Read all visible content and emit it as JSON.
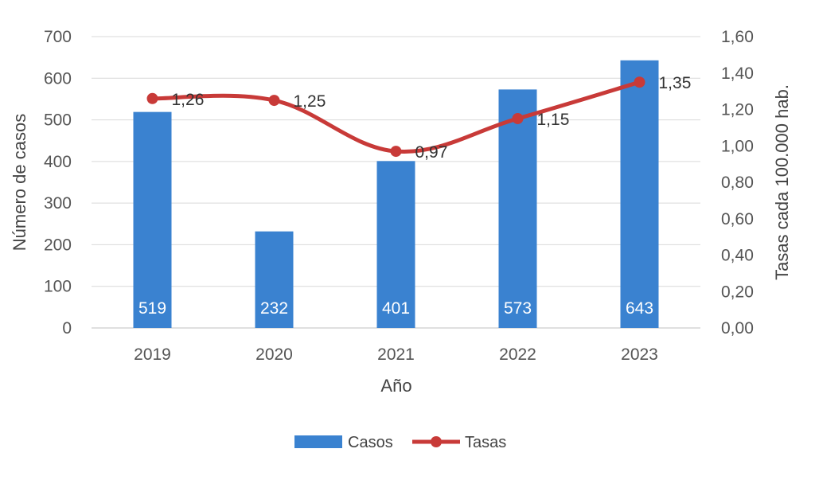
{
  "chart_data": {
    "type": "bar",
    "categories": [
      "2019",
      "2020",
      "2021",
      "2022",
      "2023"
    ],
    "xlabel": "Año",
    "ylabel": "Número de casos",
    "y2label": "Tasas cada 100.000 hab.",
    "ylim": [
      0,
      700
    ],
    "y2lim": [
      0,
      1.6
    ],
    "yticks": [
      "0",
      "100",
      "200",
      "300",
      "400",
      "500",
      "600",
      "700"
    ],
    "y2ticks": [
      "0,00",
      "0,20",
      "0,40",
      "0,60",
      "0,80",
      "1,00",
      "1,20",
      "1,40",
      "1,60"
    ],
    "grid": true,
    "legend_position": "bottom",
    "series": [
      {
        "name": "Casos",
        "type": "bar",
        "axis": "left",
        "color": "#3a82d0",
        "values": [
          519,
          232,
          401,
          573,
          643
        ],
        "labels": [
          "519",
          "232",
          "401",
          "573",
          "643"
        ]
      },
      {
        "name": "Tasas",
        "type": "line",
        "axis": "right",
        "color": "#c83a38",
        "values": [
          1.26,
          1.25,
          0.97,
          1.15,
          1.35
        ],
        "labels": [
          "1,26",
          "1,25",
          "0,97",
          "1,15",
          "1,35"
        ]
      }
    ]
  }
}
